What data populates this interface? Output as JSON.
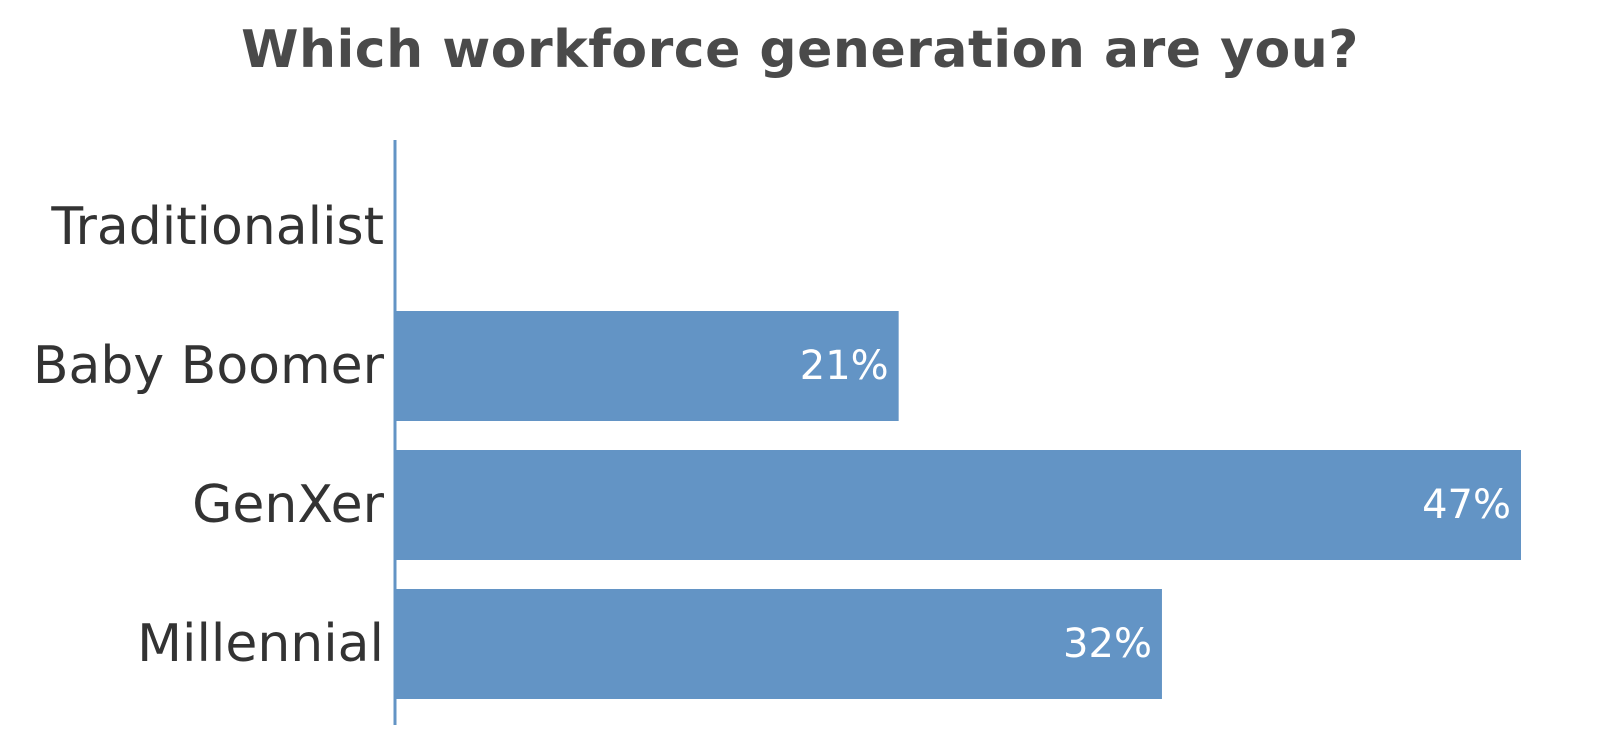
{
  "chart_data": {
    "type": "bar",
    "orientation": "horizontal",
    "title": "Which workforce generation are you?",
    "categories": [
      "Traditionalist",
      "Baby Boomer",
      "GenXer",
      "Millennial"
    ],
    "values": [
      0,
      21,
      47,
      32
    ],
    "value_labels": [
      "",
      "21%",
      "47%",
      "32%"
    ],
    "unit": "%",
    "xlim": [
      0,
      47
    ],
    "grid": false,
    "legend": "none",
    "colors": {
      "bar": "#6394c5",
      "axis": "#6394c5",
      "title": "#4a4a4a",
      "category_text": "#333333",
      "value_text": "#ffffff"
    }
  }
}
